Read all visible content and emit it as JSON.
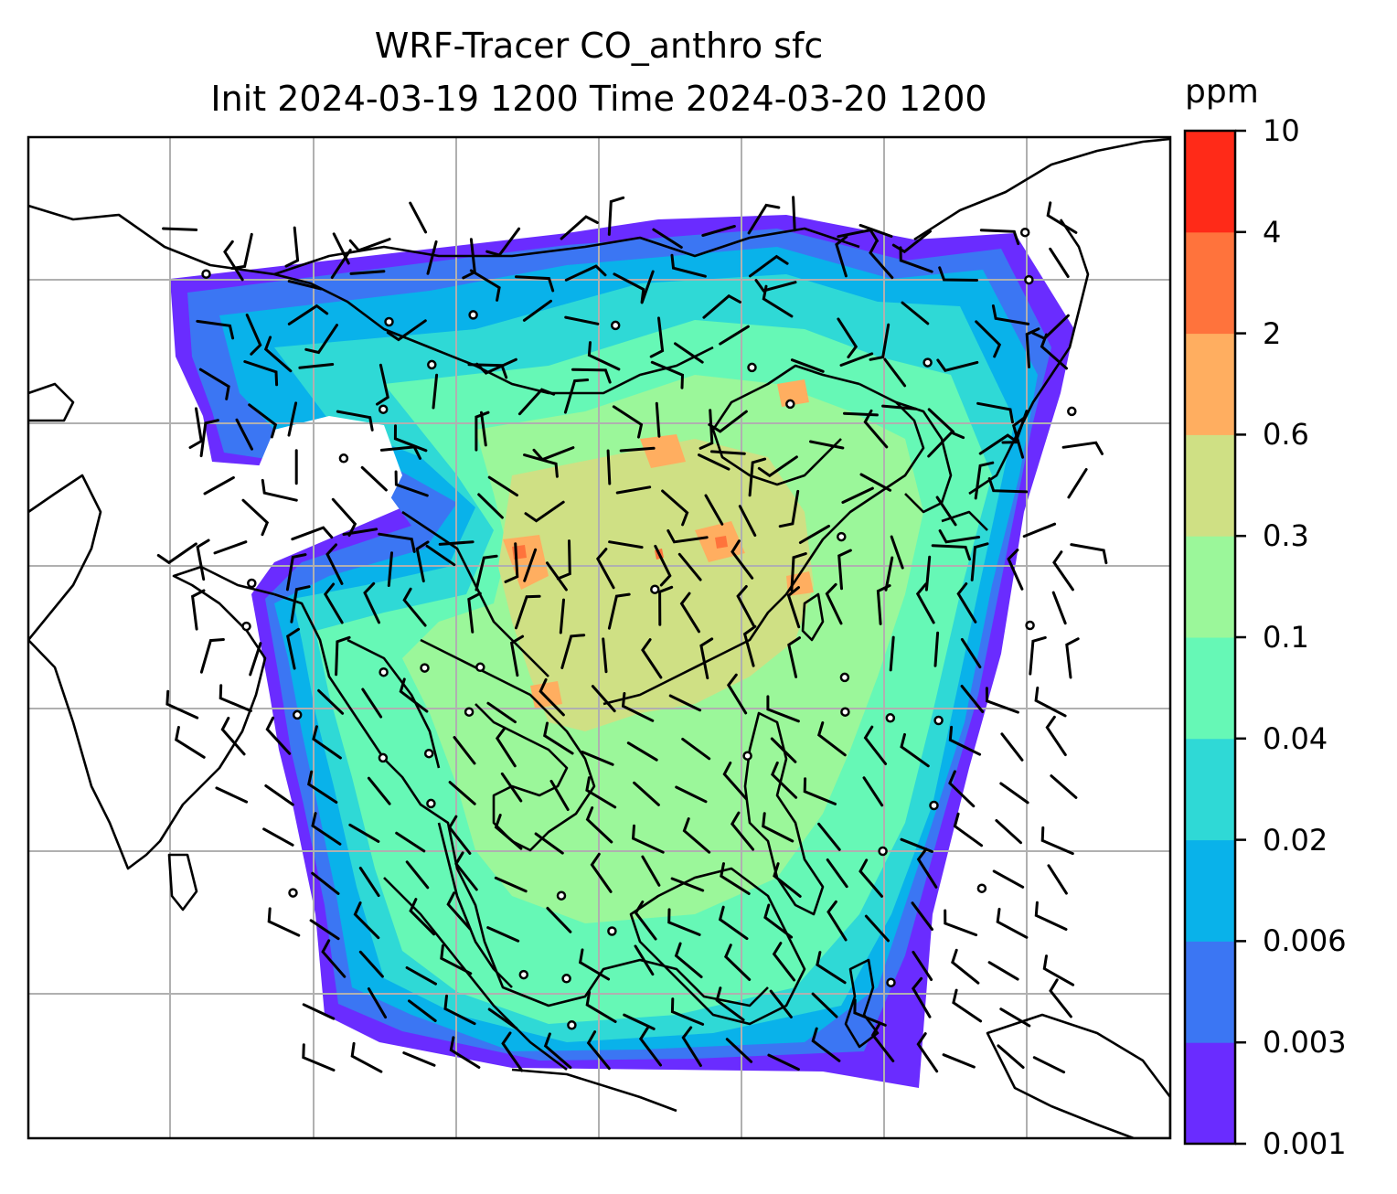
{
  "title": {
    "line1": "WRF-Tracer CO_anthro sfc",
    "line2": "Init 2024-03-19 1200 Time 2024-03-20 1200"
  },
  "colorbar": {
    "unit": "ppm",
    "levels": [
      "0.001",
      "0.003",
      "0.006",
      "0.02",
      "0.04",
      "0.1",
      "0.3",
      "0.6",
      "2",
      "4",
      "10"
    ],
    "colors": [
      "#6a2cff",
      "#3b76f3",
      "#09b2ea",
      "#2fd9d6",
      "#66f8b6",
      "#9bf79a",
      "#cfe084",
      "#ffae60",
      "#ff733c",
      "#ff2a18"
    ]
  },
  "map": {
    "region": "South and East Asia / Maritime Continent",
    "field": "CO_anthro surface concentration",
    "overlay": "wind barbs",
    "gridlines": true,
    "coastlines": true
  }
}
